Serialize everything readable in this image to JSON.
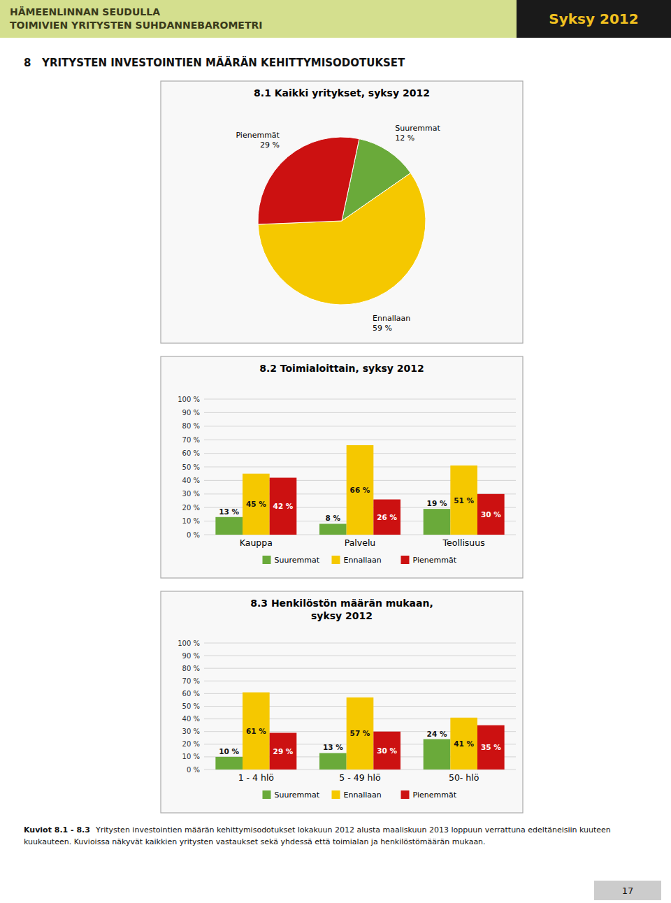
{
  "page": {
    "title_lines": [
      "HÄMEENLINNAN SEUDULLA",
      "TOIMIVIEN YRITYSTEN SUHDANNEBAROMETRI"
    ],
    "badge": "Syksy 2012",
    "section_title": "8   YRITYSTEN INVESTOINTIEN MÄÄRÄN KEHITTYMISODOTUKSET",
    "footer_bold": "Kuviot 8.1 - 8.3",
    "footer_text": "Yritysten investointien määrän kehittymisodotukset lokakuun 2012 alusta maaliskuun 2013 loppuun verrattuna edeltäneisiin kuuteen kuukauteen. Kuvioissa näkyvät kaikkien yritysten vastaukset sekä yhdessä että toimialan ja henkilöstömäärän mukaan.",
    "page_number": "17"
  },
  "chart_data": [
    {
      "type": "pie",
      "title": "8.1 Kaikki yritykset, syksy 2012",
      "categories": [
        "Suuremmat",
        "Ennallaan",
        "Pienemmät"
      ],
      "values": [
        12,
        59,
        29
      ],
      "value_labels": [
        "12 %",
        "59 %",
        "29 %"
      ],
      "colors": [
        "#6aaa3a",
        "#f5c800",
        "#cc1111"
      ],
      "data_labels": true
    },
    {
      "type": "bar",
      "title": "8.2 Toimialoittain, syksy 2012",
      "categories": [
        "Kauppa",
        "Palvelu",
        "Teollisuus"
      ],
      "series": [
        {
          "name": "Suuremmat",
          "color": "#6aaa3a",
          "values": [
            13,
            8,
            19
          ],
          "value_labels": [
            "13 %",
            "8 %",
            "19 %"
          ]
        },
        {
          "name": "Ennallaan",
          "color": "#f5c800",
          "values": [
            45,
            66,
            51
          ],
          "value_labels": [
            "45 %",
            "66 %",
            "51 %"
          ]
        },
        {
          "name": "Pienemmät",
          "color": "#cc1111",
          "values": [
            42,
            26,
            30
          ],
          "value_labels": [
            "42 %",
            "26 %",
            "30 %"
          ]
        }
      ],
      "ylim": [
        0,
        100
      ],
      "yticks": [
        {
          "value": 0,
          "label": "0 %"
        },
        {
          "value": 10,
          "label": "10 %"
        },
        {
          "value": 20,
          "label": "20 %"
        },
        {
          "value": 30,
          "label": "30 %"
        },
        {
          "value": 40,
          "label": "40 %"
        },
        {
          "value": 50,
          "label": "50 %"
        },
        {
          "value": 60,
          "label": "60 %"
        },
        {
          "value": 70,
          "label": "70 %"
        },
        {
          "value": 80,
          "label": "80 %"
        },
        {
          "value": 90,
          "label": "90 %"
        },
        {
          "value": 100,
          "label": "100 %"
        }
      ],
      "grid": true,
      "legend": "bottom",
      "data_labels": true
    },
    {
      "type": "bar",
      "title": "8.3 Henkilöstön määrän mukaan,\nsyksy 2012",
      "categories": [
        "1 - 4 hlö",
        "5 - 49 hlö",
        "50- hlö"
      ],
      "series": [
        {
          "name": "Suuremmat",
          "color": "#6aaa3a",
          "values": [
            10,
            13,
            24
          ],
          "value_labels": [
            "10 %",
            "13 %",
            "24 %"
          ]
        },
        {
          "name": "Ennallaan",
          "color": "#f5c800",
          "values": [
            61,
            57,
            41
          ],
          "value_labels": [
            "61 %",
            "57 %",
            "41 %"
          ]
        },
        {
          "name": "Pienemmät",
          "color": "#cc1111",
          "values": [
            29,
            30,
            35
          ],
          "value_labels": [
            "29 %",
            "30 %",
            "35 %"
          ]
        }
      ],
      "ylim": [
        0,
        100
      ],
      "yticks": [
        {
          "value": 0,
          "label": "0 %"
        },
        {
          "value": 10,
          "label": "10 %"
        },
        {
          "value": 20,
          "label": "20 %"
        },
        {
          "value": 30,
          "label": "30 %"
        },
        {
          "value": 40,
          "label": "40 %"
        },
        {
          "value": 50,
          "label": "50 %"
        },
        {
          "value": 60,
          "label": "60 %"
        },
        {
          "value": 70,
          "label": "70 %"
        },
        {
          "value": 80,
          "label": "80 %"
        },
        {
          "value": 90,
          "label": "90 %"
        },
        {
          "value": 100,
          "label": "100 %"
        }
      ],
      "grid": true,
      "legend": "bottom",
      "data_labels": true
    }
  ]
}
